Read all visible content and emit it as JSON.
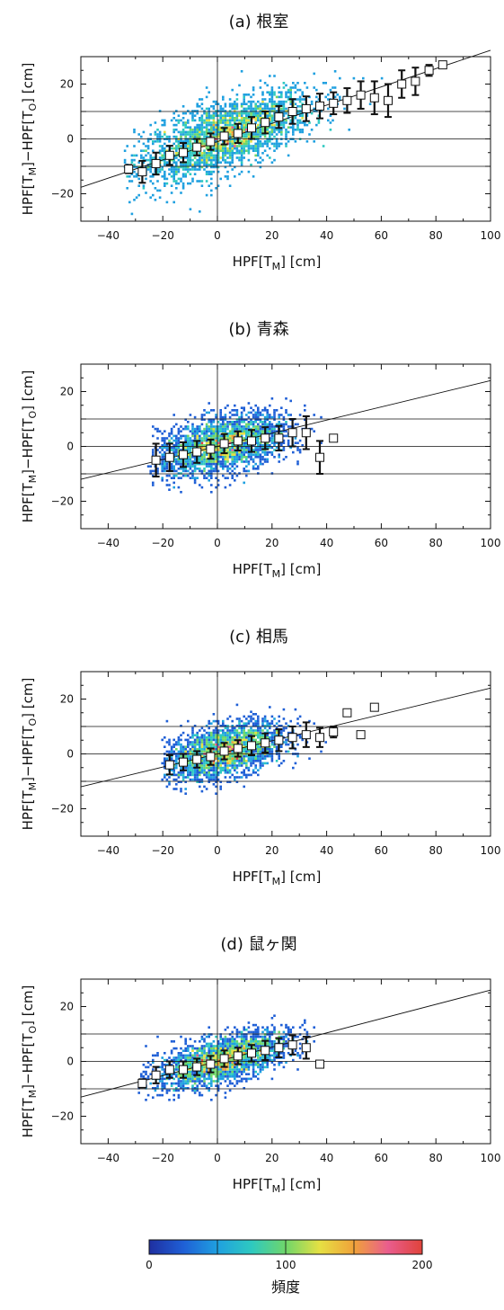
{
  "chart_data": [
    {
      "type": "scatter",
      "title": "(a) 根室",
      "xlabel_main": "HPF[T",
      "xlabel_sub": "M",
      "xlabel_tail": "] [cm]",
      "ylabel_a": "HPF[T",
      "ylabel_a_sub": "M",
      "ylabel_mid": "]−HPF[T",
      "ylabel_b_sub": "O",
      "ylabel_tail": "] [cm]",
      "xlim": [
        -50,
        100
      ],
      "ylim": [
        -30,
        30
      ],
      "xticks": [
        "−40",
        "−20",
        "0",
        "20",
        "40",
        "60",
        "80",
        "100"
      ],
      "yticks": [
        "20",
        "0",
        "−20"
      ],
      "regression": {
        "slope": 0.333,
        "intercept": -1.0
      },
      "density_cloud": {
        "center_x": 3,
        "center_y": 1,
        "spread_x": 16,
        "spread_y": 6,
        "tilt": 0.33,
        "reach_x": [
          -35,
          85
        ]
      },
      "bins": [
        {
          "x": -32.5,
          "mean": -11,
          "sd": 1.5
        },
        {
          "x": -27.5,
          "mean": -12,
          "sd": 4
        },
        {
          "x": -22.5,
          "mean": -9,
          "sd": 4
        },
        {
          "x": -17.5,
          "mean": -6,
          "sd": 3.5
        },
        {
          "x": -12.5,
          "mean": -5,
          "sd": 3.5
        },
        {
          "x": -7.5,
          "mean": -3,
          "sd": 3
        },
        {
          "x": -2.5,
          "mean": -1,
          "sd": 3
        },
        {
          "x": 2.5,
          "mean": 1,
          "sd": 3
        },
        {
          "x": 7.5,
          "mean": 2,
          "sd": 3.5
        },
        {
          "x": 12.5,
          "mean": 4,
          "sd": 4
        },
        {
          "x": 17.5,
          "mean": 6,
          "sd": 4
        },
        {
          "x": 22.5,
          "mean": 8,
          "sd": 4
        },
        {
          "x": 27.5,
          "mean": 10,
          "sd": 4.5
        },
        {
          "x": 32.5,
          "mean": 11,
          "sd": 4.5
        },
        {
          "x": 37.5,
          "mean": 12,
          "sd": 4.5
        },
        {
          "x": 42.5,
          "mean": 13,
          "sd": 4
        },
        {
          "x": 47.5,
          "mean": 14,
          "sd": 4.5
        },
        {
          "x": 52.5,
          "mean": 16,
          "sd": 5
        },
        {
          "x": 57.5,
          "mean": 15,
          "sd": 6
        },
        {
          "x": 62.5,
          "mean": 14,
          "sd": 6
        },
        {
          "x": 67.5,
          "mean": 20,
          "sd": 5
        },
        {
          "x": 72.5,
          "mean": 21,
          "sd": 5
        },
        {
          "x": 77.5,
          "mean": 25,
          "sd": 2
        },
        {
          "x": 82.5,
          "mean": 27,
          "sd": 0
        }
      ]
    },
    {
      "type": "scatter",
      "title": "(b) 青森",
      "xlabel_main": "HPF[T",
      "xlabel_sub": "M",
      "xlabel_tail": "] [cm]",
      "ylabel_a": "HPF[T",
      "ylabel_a_sub": "M",
      "ylabel_mid": "]−HPF[T",
      "ylabel_b_sub": "O",
      "ylabel_tail": "] [cm]",
      "xlim": [
        -50,
        100
      ],
      "ylim": [
        -30,
        30
      ],
      "xticks": [
        "−40",
        "−20",
        "0",
        "20",
        "40",
        "60",
        "80",
        "100"
      ],
      "yticks": [
        "20",
        "0",
        "−20"
      ],
      "regression": {
        "slope": 0.24,
        "intercept": 0.0
      },
      "density_cloud": {
        "center_x": 2,
        "center_y": 0.5,
        "spread_x": 12,
        "spread_y": 5,
        "tilt": 0.2,
        "reach_x": [
          -25,
          40
        ]
      },
      "bins": [
        {
          "x": -22.5,
          "mean": -5,
          "sd": 6
        },
        {
          "x": -17.5,
          "mean": -4,
          "sd": 5
        },
        {
          "x": -12.5,
          "mean": -3,
          "sd": 4.5
        },
        {
          "x": -7.5,
          "mean": -2,
          "sd": 4
        },
        {
          "x": -2.5,
          "mean": -1,
          "sd": 3.5
        },
        {
          "x": 2.5,
          "mean": 1,
          "sd": 3.5
        },
        {
          "x": 7.5,
          "mean": 2,
          "sd": 3.5
        },
        {
          "x": 12.5,
          "mean": 2,
          "sd": 4
        },
        {
          "x": 17.5,
          "mean": 3,
          "sd": 4
        },
        {
          "x": 22.5,
          "mean": 3,
          "sd": 4.5
        },
        {
          "x": 27.5,
          "mean": 5,
          "sd": 5
        },
        {
          "x": 32.5,
          "mean": 5,
          "sd": 6
        },
        {
          "x": 37.5,
          "mean": -4,
          "sd": 6
        },
        {
          "x": 42.5,
          "mean": 3,
          "sd": 0
        }
      ]
    },
    {
      "type": "scatter",
      "title": "(c) 相馬",
      "xlabel_main": "HPF[T",
      "xlabel_sub": "M",
      "xlabel_tail": "] [cm]",
      "ylabel_a": "HPF[T",
      "ylabel_a_sub": "M",
      "ylabel_mid": "]−HPF[T",
      "ylabel_b_sub": "O",
      "ylabel_tail": "] [cm]",
      "xlim": [
        -50,
        100
      ],
      "ylim": [
        -30,
        30
      ],
      "xticks": [
        "−40",
        "−20",
        "0",
        "20",
        "40",
        "60",
        "80",
        "100"
      ],
      "yticks": [
        "20",
        "0",
        "−20"
      ],
      "regression": {
        "slope": 0.24,
        "intercept": 0.0
      },
      "density_cloud": {
        "center_x": 3,
        "center_y": 1,
        "spread_x": 11,
        "spread_y": 4.5,
        "tilt": 0.22,
        "reach_x": [
          -20,
          45
        ]
      },
      "bins": [
        {
          "x": -17.5,
          "mean": -4,
          "sd": 3.5
        },
        {
          "x": -12.5,
          "mean": -3,
          "sd": 3
        },
        {
          "x": -7.5,
          "mean": -2,
          "sd": 3
        },
        {
          "x": -2.5,
          "mean": -1,
          "sd": 3
        },
        {
          "x": 2.5,
          "mean": 1,
          "sd": 3
        },
        {
          "x": 7.5,
          "mean": 2,
          "sd": 3
        },
        {
          "x": 12.5,
          "mean": 3,
          "sd": 3.5
        },
        {
          "x": 17.5,
          "mean": 4,
          "sd": 3.5
        },
        {
          "x": 22.5,
          "mean": 5,
          "sd": 4
        },
        {
          "x": 27.5,
          "mean": 6,
          "sd": 4
        },
        {
          "x": 32.5,
          "mean": 7,
          "sd": 4.5
        },
        {
          "x": 37.5,
          "mean": 6,
          "sd": 3.5
        },
        {
          "x": 42.5,
          "mean": 8,
          "sd": 2
        },
        {
          "x": 47.5,
          "mean": 15,
          "sd": 0
        },
        {
          "x": 52.5,
          "mean": 7,
          "sd": 0
        },
        {
          "x": 57.5,
          "mean": 17,
          "sd": 0
        }
      ]
    },
    {
      "type": "scatter",
      "title": "(d) 鼠ヶ関",
      "xlabel_main": "HPF[T",
      "xlabel_sub": "M",
      "xlabel_tail": "] [cm]",
      "ylabel_a": "HPF[T",
      "ylabel_a_sub": "M",
      "ylabel_mid": "]−HPF[T",
      "ylabel_b_sub": "O",
      "ylabel_tail": "] [cm]",
      "xlim": [
        -50,
        100
      ],
      "ylim": [
        -30,
        30
      ],
      "xticks": [
        "−40",
        "−20",
        "0",
        "20",
        "40",
        "60",
        "80",
        "100"
      ],
      "yticks": [
        "20",
        "0",
        "−20"
      ],
      "regression": {
        "slope": 0.26,
        "intercept": 0.0
      },
      "density_cloud": {
        "center_x": 2,
        "center_y": 0.5,
        "spread_x": 12,
        "spread_y": 4,
        "tilt": 0.26,
        "reach_x": [
          -30,
          38
        ]
      },
      "bins": [
        {
          "x": -27.5,
          "mean": -8,
          "sd": 1.5
        },
        {
          "x": -22.5,
          "mean": -5,
          "sd": 3
        },
        {
          "x": -17.5,
          "mean": -3,
          "sd": 3
        },
        {
          "x": -12.5,
          "mean": -3,
          "sd": 3
        },
        {
          "x": -7.5,
          "mean": -2,
          "sd": 3
        },
        {
          "x": -2.5,
          "mean": -1,
          "sd": 3
        },
        {
          "x": 2.5,
          "mean": 1,
          "sd": 3
        },
        {
          "x": 7.5,
          "mean": 2,
          "sd": 3
        },
        {
          "x": 12.5,
          "mean": 3,
          "sd": 3
        },
        {
          "x": 17.5,
          "mean": 4,
          "sd": 3.5
        },
        {
          "x": 22.5,
          "mean": 5,
          "sd": 3.5
        },
        {
          "x": 27.5,
          "mean": 6,
          "sd": 3.5
        },
        {
          "x": 32.5,
          "mean": 5,
          "sd": 4
        },
        {
          "x": 37.5,
          "mean": -1,
          "sd": 0
        }
      ]
    }
  ],
  "colorbar": {
    "label": "頻度",
    "min": 0,
    "max": 200,
    "ticks": [
      "0",
      "100",
      "200"
    ],
    "colors": [
      "#1f2fa0",
      "#1f5fd6",
      "#1fa0e0",
      "#2ec9c0",
      "#6fd66a",
      "#e6e043",
      "#f0a23a",
      "#e95d8e",
      "#e0433a"
    ]
  },
  "colors": {
    "density_low": "#1f5fd6",
    "marker_fill": "#ffffff",
    "axis": "#111111"
  }
}
